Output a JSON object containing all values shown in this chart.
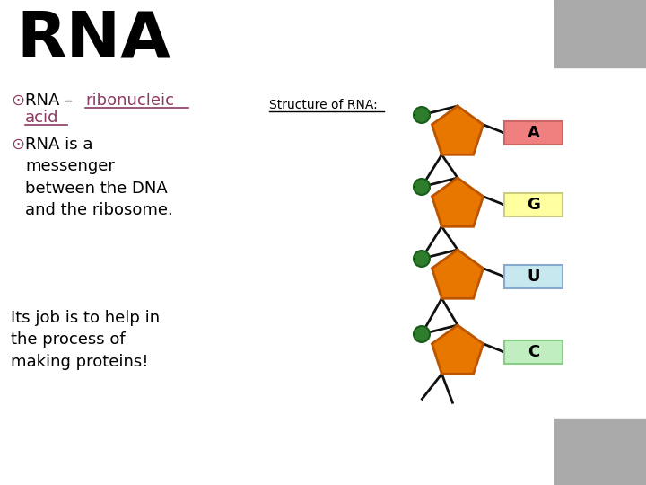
{
  "title": "RNA",
  "title_fontsize": 52,
  "title_color": "#000000",
  "bg_color": "#ffffff",
  "bullet_color": "#8B3A62",
  "bullet_symbol": "⊙",
  "bullet1_normal": "RNA – ",
  "bullet1_link": "ribonucleic\nacid",
  "bullet2_text": "RNA is a\nmessenger\nbetween the DNA\nand the ribosome.",
  "extra_text": "Its job is to help in\nthe process of\nmaking proteins!",
  "structure_label": "Structure of RNA:",
  "gray_box_color": "#aaaaaa",
  "pentagon_color": "#E87700",
  "pentagon_outline": "#bb5500",
  "green_circle_color": "#2d7d2d",
  "backbone_color": "#111111",
  "nucleotides": [
    {
      "label": "A",
      "box_color": "#F08080",
      "box_outline": "#cc6666"
    },
    {
      "label": "G",
      "box_color": "#FFFFA0",
      "box_outline": "#cccc80"
    },
    {
      "label": "U",
      "box_color": "#C8E8F0",
      "box_outline": "#88aacc"
    },
    {
      "label": "C",
      "box_color": "#C0EEC0",
      "box_outline": "#88cc88"
    }
  ]
}
